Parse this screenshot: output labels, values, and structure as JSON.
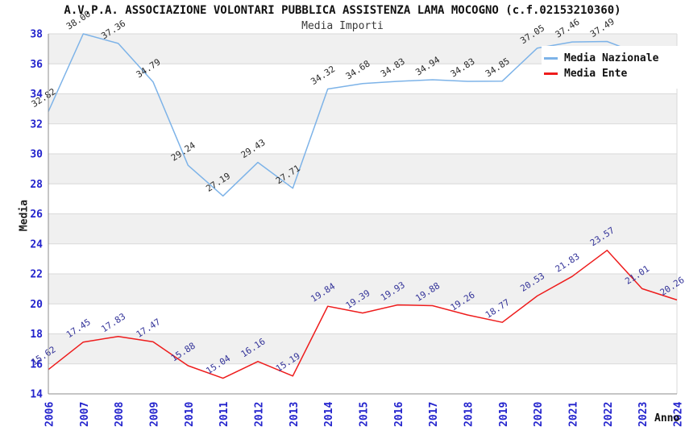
{
  "title": "A.V.P.A. ASSOCIAZIONE VOLONTARI PUBBLICA ASSISTENZA LAMA MOCOGNO (c.f.02153210360)",
  "subtitle": "Media Importi",
  "axes": {
    "y_label": "Media",
    "x_label": "Anno",
    "y_ticks": [
      "38",
      "36",
      "34",
      "32",
      "30",
      "28",
      "26",
      "24",
      "22",
      "20",
      "18",
      "16",
      "14"
    ],
    "tick_color": "#2323cd"
  },
  "legend": {
    "items": [
      {
        "label": "Media Nazionale",
        "color": "#7db3e8"
      },
      {
        "label": "Media Ente",
        "color": "#ee1c1c"
      }
    ]
  },
  "chart_data": {
    "type": "line",
    "title": "A.V.P.A. ASSOCIAZIONE VOLONTARI PUBBLICA ASSISTENZA LAMA MOCOGNO (c.f.02153210360)",
    "subtitle": "Media Importi",
    "xlabel": "Anno",
    "ylabel": "Media",
    "categories": [
      "2006",
      "2007",
      "2008",
      "2009",
      "2010",
      "2011",
      "2012",
      "2013",
      "2014",
      "2015",
      "2016",
      "2017",
      "2018",
      "2019",
      "2020",
      "2021",
      "2022",
      "2023",
      "2024"
    ],
    "ylim": [
      14,
      38
    ],
    "y_tick_step": 2,
    "grid": "horizontal gridlines every 2 units with alternating light-gray bands",
    "legend_position": "top-right inside plot",
    "series": [
      {
        "name": "Media Nazionale",
        "color": "#7db3e8",
        "label_color": "#2a2a2a",
        "values": [
          32.82,
          38.0,
          37.36,
          34.79,
          29.24,
          27.19,
          29.43,
          27.71,
          34.32,
          34.68,
          34.83,
          34.94,
          34.83,
          34.85,
          37.05,
          37.46,
          37.49,
          null,
          null
        ],
        "note": "line continues behind legend box; 2023 and 2024 points hidden by legend"
      },
      {
        "name": "Media Ente",
        "color": "#ee1c1c",
        "label_color": "#333399",
        "values": [
          15.62,
          17.45,
          17.83,
          17.47,
          15.88,
          15.04,
          16.16,
          15.19,
          19.84,
          19.39,
          19.93,
          19.88,
          19.26,
          18.77,
          20.53,
          21.83,
          23.57,
          21.01,
          20.26
        ]
      }
    ]
  }
}
